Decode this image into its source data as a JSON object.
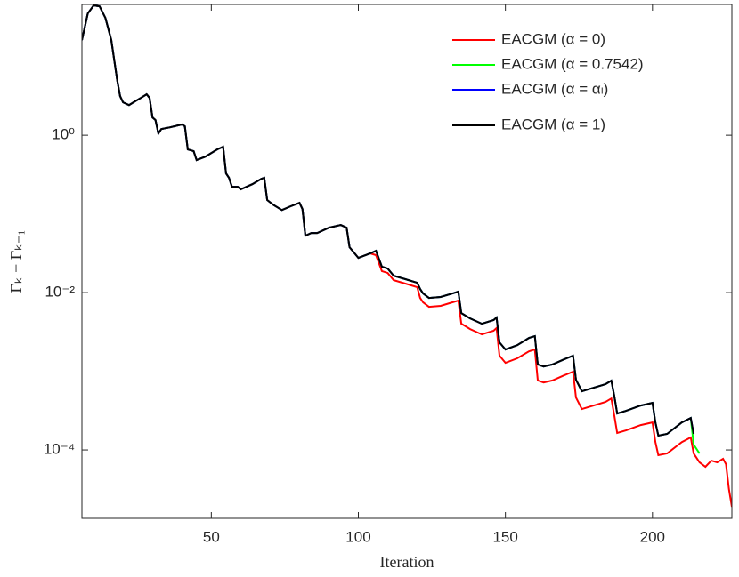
{
  "chart_data": {
    "type": "line",
    "xlabel": "Iteration",
    "ylabel": "Γₖ − Γₖ₋₁",
    "log_y": true,
    "legend": "upper right",
    "xlim": [
      6,
      227
    ],
    "xticks": [
      50,
      100,
      150,
      200
    ],
    "ylim": [
      1.35e-05,
      46
    ],
    "yticks": [
      {
        "value": 1,
        "label": "10⁰"
      },
      {
        "value": 0.01,
        "label": "10⁻²"
      },
      {
        "value": 0.0001,
        "label": "10⁻⁴"
      }
    ],
    "series": [
      {
        "name": "EACGM (α = 0)",
        "color": "#ff0000",
        "x": [
          6,
          8,
          10,
          12,
          14,
          16,
          18,
          19,
          20,
          22,
          24,
          26,
          28,
          29,
          30,
          31,
          32,
          33,
          36,
          40,
          41,
          42,
          44,
          45,
          48,
          52,
          54,
          55,
          56,
          57,
          59,
          60,
          64,
          67,
          68,
          69,
          71,
          74,
          77,
          80,
          81,
          82,
          84,
          86,
          90,
          94,
          96,
          97,
          100,
          104,
          106,
          108,
          110,
          112,
          116,
          120,
          121,
          122,
          124,
          128,
          132,
          134,
          135,
          138,
          142,
          146,
          147,
          148,
          150,
          154,
          158,
          160,
          161,
          163,
          166,
          170,
          173,
          174,
          176,
          180,
          184,
          186,
          187,
          188,
          191,
          196,
          200,
          201,
          202,
          205,
          210,
          213,
          214,
          216,
          218,
          220,
          222,
          224,
          225,
          226,
          227
        ],
        "values": [
          16.2,
          35.3,
          44.7,
          43.5,
          31.0,
          16.2,
          5.02,
          3.14,
          2.62,
          2.42,
          2.69,
          2.98,
          3.31,
          2.98,
          1.68,
          1.56,
          1.05,
          1.2,
          1.26,
          1.37,
          1.3,
          0.659,
          0.626,
          0.483,
          0.535,
          0.659,
          0.713,
          0.327,
          0.287,
          0.221,
          0.221,
          0.205,
          0.239,
          0.279,
          0.287,
          0.15,
          0.131,
          0.112,
          0.125,
          0.138,
          0.115,
          0.0529,
          0.0571,
          0.0571,
          0.0668,
          0.0722,
          0.0668,
          0.0377,
          0.0276,
          0.0314,
          0.0299,
          0.0187,
          0.0177,
          0.0144,
          0.013,
          0.0117,
          0.00856,
          0.00752,
          0.00659,
          0.00678,
          0.00752,
          0.00794,
          0.00403,
          0.00344,
          0.00294,
          0.00327,
          0.00354,
          0.00158,
          0.00128,
          0.00146,
          0.00179,
          0.00189,
          0.000764,
          0.00072,
          0.000764,
          0.000889,
          0.000989,
          0.000464,
          0.000331,
          0.000367,
          0.000407,
          0.000451,
          0.000276,
          0.000164,
          0.000177,
          0.000207,
          0.000224,
          0.000126,
          8.57e-05,
          9.02e-05,
          0.000126,
          0.000144,
          9.01e-05,
          6.95e-05,
          6.1e-05,
          7.31e-05,
          6.95e-05,
          7.71e-05,
          6.59e-05,
          3.18e-05,
          1.89e-05
        ]
      },
      {
        "name": "EACGM (α = 0.7542)",
        "color": "#00ff00",
        "x": [
          6,
          8,
          10,
          12,
          14,
          16,
          18,
          19,
          20,
          22,
          24,
          26,
          28,
          29,
          30,
          31,
          32,
          33,
          36,
          40,
          41,
          42,
          44,
          45,
          48,
          52,
          54,
          55,
          56,
          57,
          59,
          60,
          64,
          67,
          68,
          69,
          71,
          74,
          77,
          80,
          81,
          82,
          84,
          86,
          90,
          94,
          96,
          97,
          100,
          104,
          106,
          108,
          110,
          112,
          116,
          120,
          121,
          122,
          124,
          128,
          132,
          134,
          135,
          138,
          142,
          146,
          147,
          148,
          150,
          154,
          158,
          160,
          161,
          163,
          166,
          170,
          173,
          174,
          176,
          180,
          184,
          186,
          187,
          188,
          191,
          196,
          200,
          201,
          202,
          205,
          210,
          213,
          214,
          216
        ],
        "values": [
          16.2,
          35.3,
          44.7,
          43.5,
          31.0,
          16.2,
          5.02,
          3.14,
          2.62,
          2.42,
          2.69,
          2.98,
          3.31,
          2.98,
          1.68,
          1.56,
          1.05,
          1.2,
          1.26,
          1.37,
          1.3,
          0.659,
          0.626,
          0.483,
          0.535,
          0.659,
          0.713,
          0.327,
          0.287,
          0.221,
          0.221,
          0.205,
          0.239,
          0.279,
          0.287,
          0.15,
          0.131,
          0.112,
          0.125,
          0.138,
          0.115,
          0.0529,
          0.0571,
          0.0571,
          0.0668,
          0.0722,
          0.0668,
          0.0377,
          0.0276,
          0.0314,
          0.034,
          0.0213,
          0.0202,
          0.0164,
          0.0148,
          0.0133,
          0.0111,
          0.00975,
          0.00855,
          0.00879,
          0.00975,
          0.0103,
          0.0055,
          0.0047,
          0.00402,
          0.00447,
          0.00483,
          0.00233,
          0.00189,
          0.00215,
          0.00265,
          0.00279,
          0.00122,
          0.00115,
          0.00122,
          0.00142,
          0.00158,
          0.000781,
          0.000557,
          0.000618,
          0.000686,
          0.00076,
          0.000489,
          0.00029,
          0.000314,
          0.000367,
          0.000397,
          0.000224,
          0.000152,
          0.00016,
          0.000224,
          0.000255,
          0.000117,
          9.01e-05
        ]
      },
      {
        "name": "EACGM (α = αₗ)",
        "color": "#0000ff",
        "x": [
          6,
          8,
          10,
          12,
          14,
          16,
          18,
          19,
          20,
          22,
          24,
          26,
          28,
          29,
          30,
          31,
          32,
          33,
          36,
          40,
          41,
          42,
          44,
          45,
          48,
          52,
          54,
          55,
          56,
          57,
          59,
          60,
          64,
          67,
          68,
          69,
          71,
          74,
          77,
          80,
          81,
          82,
          84,
          86,
          90,
          94,
          96,
          97,
          100,
          104,
          106,
          108,
          110,
          112,
          116,
          120,
          121,
          122,
          124,
          128,
          132,
          134,
          135,
          138,
          142,
          146,
          147,
          148,
          150,
          154,
          158,
          160,
          161,
          163,
          166,
          170,
          173,
          174,
          176,
          180,
          184,
          186,
          187,
          188,
          191,
          196,
          200,
          201,
          202,
          205,
          210,
          213,
          214
        ],
        "values": [
          16.2,
          35.3,
          44.7,
          43.5,
          31.0,
          16.2,
          5.02,
          3.14,
          2.62,
          2.42,
          2.69,
          2.98,
          3.31,
          2.98,
          1.68,
          1.56,
          1.05,
          1.2,
          1.26,
          1.37,
          1.3,
          0.659,
          0.626,
          0.483,
          0.535,
          0.659,
          0.713,
          0.327,
          0.287,
          0.221,
          0.221,
          0.205,
          0.239,
          0.279,
          0.287,
          0.15,
          0.131,
          0.112,
          0.125,
          0.138,
          0.115,
          0.0529,
          0.0571,
          0.0571,
          0.0668,
          0.0722,
          0.0668,
          0.0377,
          0.0276,
          0.0314,
          0.034,
          0.0213,
          0.0202,
          0.0164,
          0.0148,
          0.0133,
          0.0111,
          0.00975,
          0.00855,
          0.00879,
          0.00975,
          0.0103,
          0.0055,
          0.0047,
          0.00402,
          0.00447,
          0.00483,
          0.00233,
          0.00189,
          0.00215,
          0.00265,
          0.00279,
          0.00122,
          0.00115,
          0.00122,
          0.00142,
          0.00158,
          0.000781,
          0.000557,
          0.000618,
          0.000686,
          0.00076,
          0.000489,
          0.00029,
          0.000314,
          0.000367,
          0.000397,
          0.000224,
          0.000152,
          0.00016,
          0.000224,
          0.000255,
          0.00016
        ]
      },
      {
        "name": "EACGM (α = 1)",
        "color": "#000000",
        "x": [
          6,
          8,
          10,
          12,
          14,
          16,
          18,
          19,
          20,
          22,
          24,
          26,
          28,
          29,
          30,
          31,
          32,
          33,
          36,
          40,
          41,
          42,
          44,
          45,
          48,
          52,
          54,
          55,
          56,
          57,
          59,
          60,
          64,
          67,
          68,
          69,
          71,
          74,
          77,
          80,
          81,
          82,
          84,
          86,
          90,
          94,
          96,
          97,
          100,
          104,
          106,
          108,
          110,
          112,
          116,
          120,
          121,
          122,
          124,
          128,
          132,
          134,
          135,
          138,
          142,
          146,
          147,
          148,
          150,
          154,
          158,
          160,
          161,
          163,
          166,
          170,
          173,
          174,
          176,
          180,
          184,
          186,
          187,
          188,
          191,
          196,
          200,
          201,
          202,
          205,
          210,
          213,
          214
        ],
        "values": [
          16.2,
          35.3,
          44.7,
          43.5,
          31.0,
          16.2,
          5.02,
          3.14,
          2.62,
          2.42,
          2.69,
          2.98,
          3.31,
          2.98,
          1.68,
          1.56,
          1.05,
          1.2,
          1.26,
          1.37,
          1.3,
          0.659,
          0.626,
          0.483,
          0.535,
          0.659,
          0.713,
          0.327,
          0.287,
          0.221,
          0.221,
          0.205,
          0.239,
          0.279,
          0.287,
          0.15,
          0.131,
          0.112,
          0.125,
          0.138,
          0.115,
          0.0529,
          0.0571,
          0.0571,
          0.0668,
          0.0722,
          0.0668,
          0.0377,
          0.0276,
          0.0314,
          0.034,
          0.0213,
          0.0202,
          0.0164,
          0.0148,
          0.0133,
          0.0111,
          0.00975,
          0.00855,
          0.00879,
          0.00975,
          0.0103,
          0.0055,
          0.0047,
          0.00402,
          0.00447,
          0.00483,
          0.00233,
          0.00189,
          0.00215,
          0.00265,
          0.00279,
          0.00122,
          0.00115,
          0.00122,
          0.00142,
          0.00158,
          0.000781,
          0.000557,
          0.000618,
          0.000686,
          0.00076,
          0.000489,
          0.00029,
          0.000314,
          0.000367,
          0.000397,
          0.000224,
          0.000152,
          0.00016,
          0.000224,
          0.000255,
          0.00016
        ]
      }
    ]
  }
}
